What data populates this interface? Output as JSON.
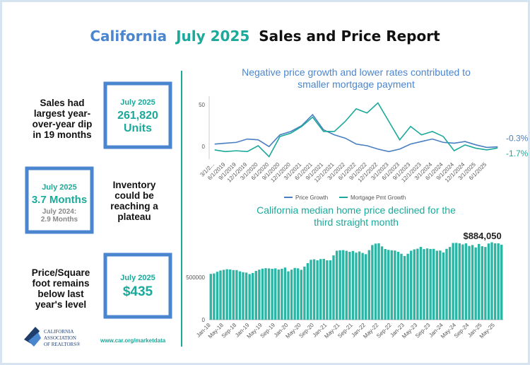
{
  "header": {
    "title_parts": [
      "California",
      "July 2025",
      "Sales and Price Report"
    ]
  },
  "stats": [
    {
      "text_lines": [
        "Sales had",
        "largest year-",
        "over-year dip",
        "in 19 months"
      ],
      "box_lines": [
        "July 2025",
        "261,820",
        "Units"
      ]
    },
    {
      "text_lines": [
        "Inventory",
        "could be",
        "reaching a",
        "plateau"
      ],
      "box_lines": [
        "July 2025",
        "3.7 Months",
        "July 2024:",
        "2.9 Months"
      ]
    },
    {
      "text_lines": [
        "Price/Square",
        "foot remains",
        "below last",
        "year's level"
      ],
      "box_lines": [
        "July 2025",
        "$435"
      ]
    }
  ],
  "footer": {
    "logo_lines": [
      "CALIFORNIA",
      "ASSOCIATION",
      "OF REALTORS®"
    ],
    "url": "www.car.org/marketdata"
  },
  "chart_data": [
    {
      "type": "line",
      "title": [
        "Negative price growth and lower rates contributed to",
        "smaller mortgage payment"
      ],
      "categories": [
        "3/1/2...",
        "6/1/2019",
        "9/1/2019",
        "12/1/2019",
        "3/1/2020",
        "6/1/2020",
        "9/1/2020",
        "12/1/2020",
        "3/1/2021",
        "6/1/2021",
        "9/1/2021",
        "12/1/2021",
        "3/1/2022",
        "6/1/2022",
        "9/1/2022",
        "12/1/2022",
        "3/1/2023",
        "6/1/2023",
        "9/1/2023",
        "12/1/2023",
        "3/1/2024",
        "6/1/2024",
        "9/1/2024",
        "12/1/2024",
        "3/1/2025",
        "6/1/2025",
        null
      ],
      "series": [
        {
          "name": "Price Growth",
          "color": "#4a7fc1",
          "end_label": "-0.3%",
          "values": [
            3,
            4,
            5,
            9,
            8,
            0,
            14,
            18,
            25,
            38,
            20,
            14,
            10,
            3,
            1,
            -3,
            -6,
            -3,
            3,
            6,
            9,
            5,
            4,
            6,
            2,
            -1,
            -0.3
          ]
        },
        {
          "name": "Mortgage Pmt Growth",
          "color": "#1aa99a",
          "end_label": "-1.7%",
          "values": [
            -4,
            -6,
            -5,
            -6,
            1,
            -12,
            12,
            16,
            24,
            35,
            18,
            18,
            30,
            45,
            40,
            52,
            30,
            8,
            24,
            14,
            18,
            12,
            -5,
            2,
            -2,
            -4,
            -1.7
          ]
        }
      ],
      "ylim": [
        -15,
        60
      ],
      "yticks": [
        0,
        50
      ],
      "grid": false,
      "legend": "bottom"
    },
    {
      "type": "bar",
      "title": [
        "California median home price declined for the",
        "third straight month"
      ],
      "color": "#2ab5a5",
      "categories": [
        "Jan-18",
        null,
        null,
        null,
        "May-18",
        null,
        null,
        null,
        "Sep-18",
        null,
        null,
        null,
        "Jan-19",
        null,
        null,
        null,
        "May-19",
        null,
        null,
        null,
        "Sep-19",
        null,
        null,
        null,
        "Jan-20",
        null,
        null,
        null,
        "May-20",
        null,
        null,
        null,
        "Sep-20",
        null,
        null,
        null,
        "Jan-21",
        null,
        null,
        null,
        "May-21",
        null,
        null,
        null,
        "Sep-21",
        null,
        null,
        null,
        "Jan-22",
        null,
        null,
        null,
        "May-22",
        null,
        null,
        null,
        "Sep-22",
        null,
        null,
        null,
        "Jan-23",
        null,
        null,
        null,
        "May-23",
        null,
        null,
        null,
        "Sep-23",
        null,
        null,
        null,
        "Jan-24",
        null,
        null,
        null,
        "May-24",
        null,
        null,
        null,
        "Sep-24",
        null,
        null,
        null,
        "Jan-25",
        null,
        null,
        null,
        "May-25",
        null,
        null
      ],
      "values": [
        540000,
        545000,
        565000,
        580000,
        588000,
        595000,
        592000,
        585000,
        585000,
        570000,
        560000,
        555000,
        538000,
        550000,
        575000,
        590000,
        602000,
        607000,
        605000,
        600000,
        605000,
        592000,
        600000,
        615000,
        570000,
        590000,
        610000,
        605000,
        588000,
        626000,
        667000,
        706000,
        712000,
        700000,
        715000,
        717000,
        700000,
        700000,
        758000,
        813000,
        818000,
        820000,
        812000,
        800000,
        810000,
        790000,
        804000,
        787000,
        772000,
        820000,
        880000,
        897000,
        900000,
        864000,
        833000,
        823000,
        818000,
        815000,
        800000,
        777000,
        751000,
        777000,
        813000,
        829000,
        837000,
        858000,
        832000,
        840000,
        834000,
        835000,
        813000,
        815000,
        793000,
        835000,
        857000,
        904000,
        905000,
        900000,
        887000,
        900000,
        869000,
        880000,
        852000,
        893000,
        866000,
        857000,
        898000,
        912000,
        900000,
        900000,
        884050
      ],
      "value_labels": [
        null,
        null,
        null,
        null,
        null,
        null,
        null,
        null,
        null,
        null,
        null,
        null,
        null,
        null,
        null,
        null,
        null,
        null,
        null,
        null,
        null,
        null,
        null,
        null,
        null,
        null,
        null,
        null,
        null,
        null,
        null,
        null,
        null,
        null,
        null,
        null,
        null,
        null,
        null,
        null,
        null,
        null,
        null,
        null,
        null,
        null,
        null,
        null,
        null,
        null,
        null,
        null,
        null,
        null,
        null,
        null,
        null,
        null,
        null,
        null,
        null,
        null,
        null,
        null,
        null,
        null,
        null,
        null,
        null,
        null,
        null,
        null,
        null,
        null,
        null,
        null,
        null,
        null,
        null,
        null,
        null,
        null,
        null,
        null,
        null,
        null,
        null,
        null,
        null,
        null,
        "$884,050"
      ],
      "ylim": [
        0,
        950000
      ],
      "yticks": [
        0,
        500000
      ],
      "grid": false
    }
  ]
}
